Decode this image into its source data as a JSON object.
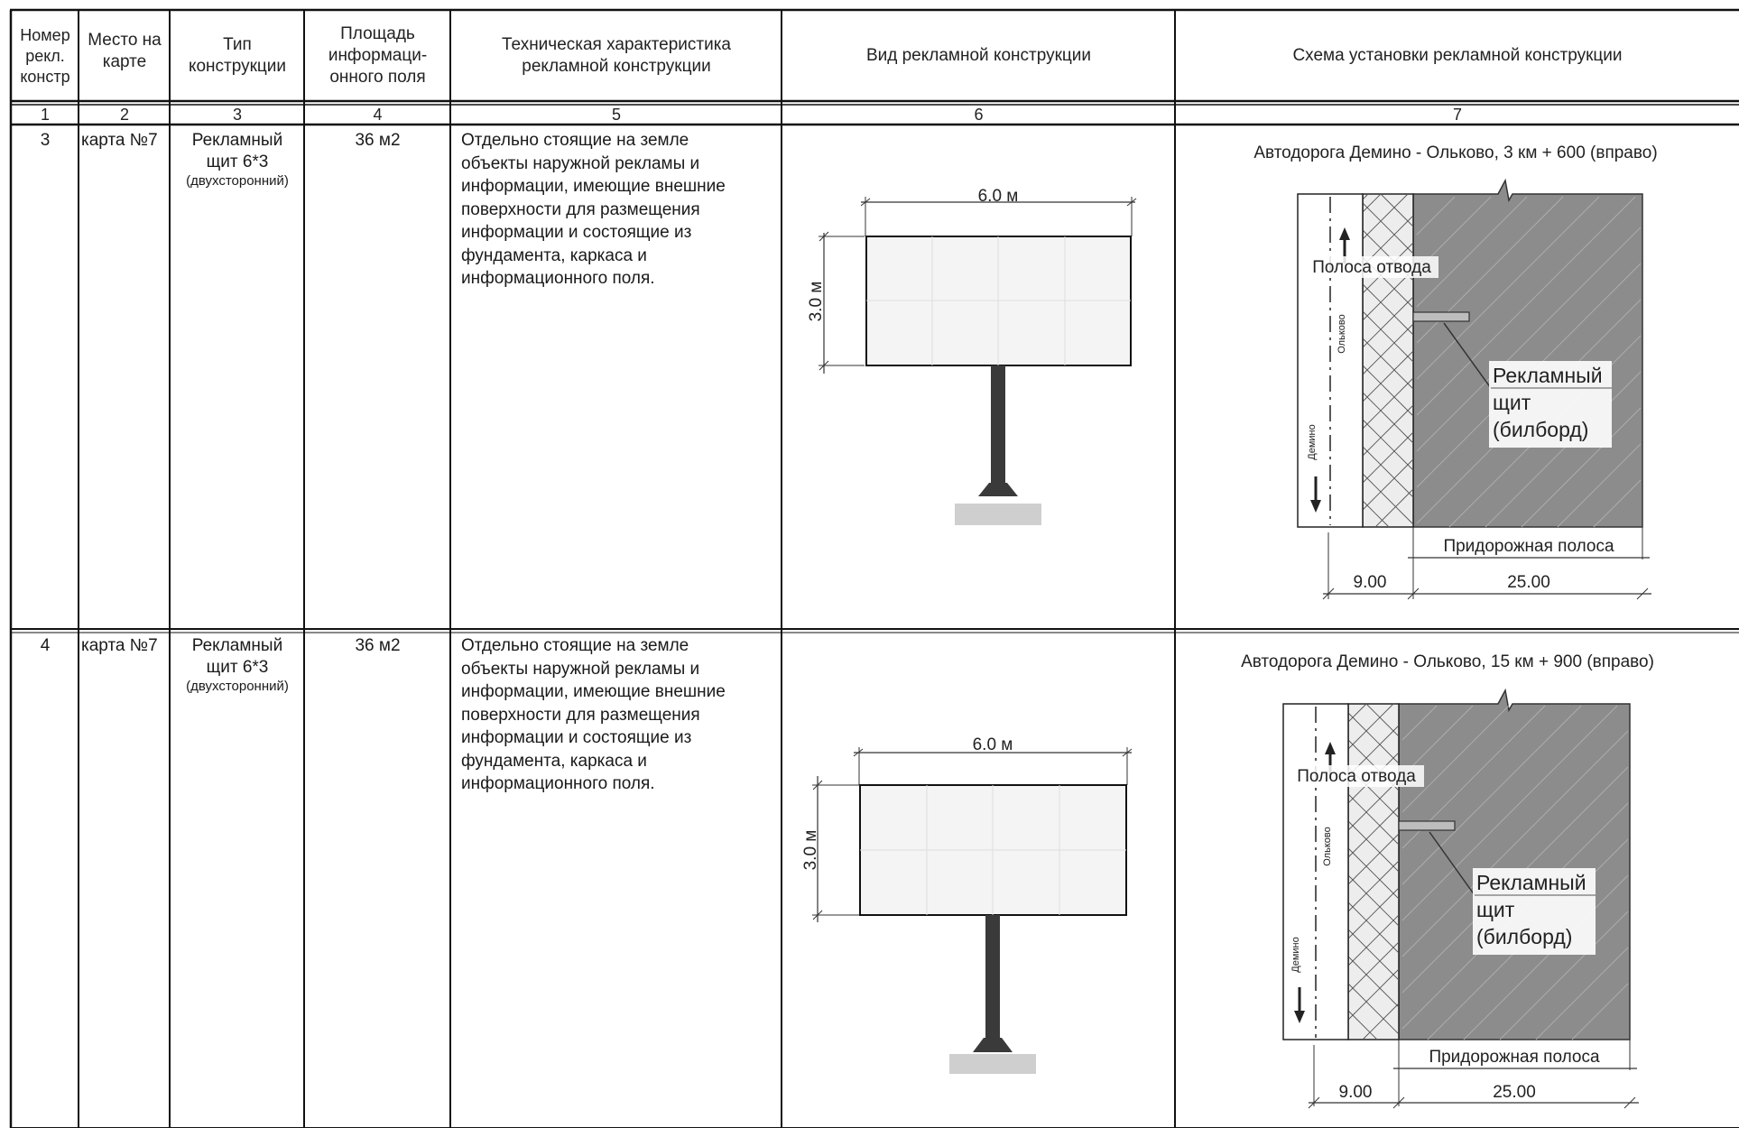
{
  "columns": {
    "num": "Номер\nрекл.\nконстр",
    "place": "Место на\nкарте",
    "type": "Тип\nконструкции",
    "area": "Площадь\nинформаци-\nонного поля",
    "tech": "Техническая характеристика\nрекламной конструкции",
    "view": "Вид рекламной конструкции",
    "scheme": "Схема установки рекламной конструкции"
  },
  "column_numbers": [
    "1",
    "2",
    "3",
    "4",
    "5",
    "6",
    "7"
  ],
  "rows": [
    {
      "num": "3",
      "place": "карта №7",
      "type_main": "Рекламный\nщит 6*3",
      "type_sub": "(двухсторонний)",
      "area": "36 м2",
      "description": "Отдельно стоящие на земле\nобъекты наружной рекламы и\nинформации, имеющие внешние\nповерхности для размещения\nинформации и состоящие из\nфундамента, каркаса и\nинформационного поля.",
      "view": {
        "width_label": "6.0 м",
        "height_label": "3.0 м"
      },
      "scheme": {
        "title": "Автодорога Демино - Ольково, 3 км + 600 (вправо)",
        "strip_label": "Полоса отвода",
        "town_top": "Ольково",
        "town_bottom": "Демино",
        "board_label_1": "Рекламный",
        "board_label_2": "щит",
        "board_label_3": "(билборд)",
        "roadside_label": "Придорожная полоса",
        "dim_left": "9.00",
        "dim_right": "25.00"
      }
    },
    {
      "num": "4",
      "place": "карта №7",
      "type_main": "Рекламный\nщит 6*3",
      "type_sub": "(двухсторонний)",
      "area": "36 м2",
      "description": "Отдельно стоящие на земле\nобъекты наружной рекламы и\nинформации, имеющие внешние\nповерхности для размещения\nинформации и состоящие из\nфундамента, каркаса и\nинформационного поля.",
      "view": {
        "width_label": "6.0 м",
        "height_label": "3.0 м"
      },
      "scheme": {
        "title": "Автодорога Демино - Ольково, 15 км + 900 (вправо)",
        "strip_label": "Полоса отвода",
        "town_top": "Ольково",
        "town_bottom": "Демино",
        "board_label_1": "Рекламный",
        "board_label_2": "щит",
        "board_label_3": "(билборд)",
        "roadside_label": "Придорожная полоса",
        "dim_left": "9.00",
        "dim_right": "25.00"
      }
    }
  ]
}
